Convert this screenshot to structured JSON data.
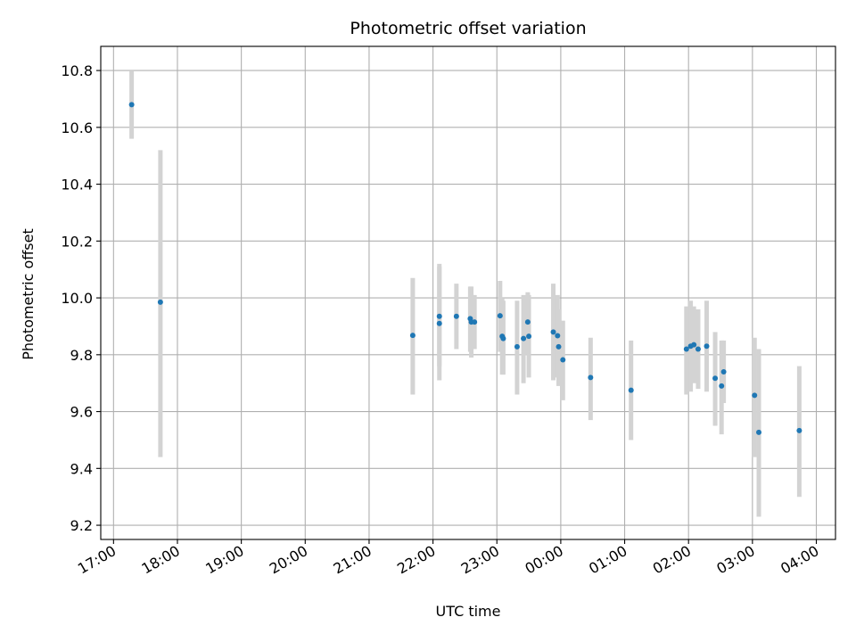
{
  "chart_data": {
    "type": "scatter",
    "title": "Photometric offset variation",
    "xlabel": "UTC time",
    "ylabel": "Photometric offset",
    "x_tick_labels": [
      "17:00",
      "18:00",
      "19:00",
      "20:00",
      "21:00",
      "22:00",
      "23:00",
      "00:00",
      "01:00",
      "02:00",
      "03:00",
      "04:00"
    ],
    "y_ticks": [
      9.2,
      9.4,
      9.6,
      9.8,
      10.0,
      10.2,
      10.4,
      10.6,
      10.8
    ],
    "y_tick_labels": [
      "9.2",
      "9.4",
      "9.6",
      "9.8",
      "10.0",
      "10.2",
      "10.4",
      "10.6",
      "10.8"
    ],
    "xlim": [
      "16:48",
      "04:18"
    ],
    "ylim": [
      9.15,
      10.885
    ],
    "grid": true,
    "colors": {
      "points": "#1f77b4",
      "errorbars": "#d3d3d3",
      "grid": "#b0b0b0"
    },
    "series": [
      {
        "points": [
          {
            "x": "17:17",
            "y": 10.68,
            "lo": 10.56,
            "hi": 10.8
          },
          {
            "x": "17:44",
            "y": 9.985,
            "lo": 9.44,
            "hi": 10.52
          },
          {
            "x": "21:41",
            "y": 9.868,
            "lo": 9.66,
            "hi": 10.07
          },
          {
            "x": "22:06",
            "y": 9.935,
            "lo": 9.76,
            "hi": 10.12
          },
          {
            "x": "22:06",
            "y": 9.91,
            "lo": 9.71,
            "hi": 10.11
          },
          {
            "x": "22:22",
            "y": 9.935,
            "lo": 9.82,
            "hi": 10.05
          },
          {
            "x": "22:35",
            "y": 9.927,
            "lo": 9.81,
            "hi": 10.04
          },
          {
            "x": "22:36",
            "y": 9.915,
            "lo": 9.79,
            "hi": 10.04
          },
          {
            "x": "22:39",
            "y": 9.915,
            "lo": 9.82,
            "hi": 10.01
          },
          {
            "x": "23:03",
            "y": 9.937,
            "lo": 9.81,
            "hi": 10.06
          },
          {
            "x": "23:05",
            "y": 9.865,
            "lo": 9.73,
            "hi": 10.0
          },
          {
            "x": "23:06",
            "y": 9.857,
            "lo": 9.73,
            "hi": 9.99
          },
          {
            "x": "23:19",
            "y": 9.828,
            "lo": 9.66,
            "hi": 9.99
          },
          {
            "x": "23:25",
            "y": 9.857,
            "lo": 9.7,
            "hi": 10.01
          },
          {
            "x": "23:29",
            "y": 9.915,
            "lo": 9.8,
            "hi": 10.02
          },
          {
            "x": "23:30",
            "y": 9.865,
            "lo": 9.72,
            "hi": 10.01
          },
          {
            "x": "23:53",
            "y": 9.88,
            "lo": 9.71,
            "hi": 10.05
          },
          {
            "x": "23:57",
            "y": 9.867,
            "lo": 9.72,
            "hi": 10.01
          },
          {
            "x": "23:58",
            "y": 9.828,
            "lo": 9.69,
            "hi": 9.96
          },
          {
            "x": "00:02",
            "y": 9.782,
            "lo": 9.64,
            "hi": 9.92
          },
          {
            "x": "00:28",
            "y": 9.72,
            "lo": 9.57,
            "hi": 9.86
          },
          {
            "x": "01:06",
            "y": 9.675,
            "lo": 9.5,
            "hi": 9.85
          },
          {
            "x": "01:58",
            "y": 9.82,
            "lo": 9.66,
            "hi": 9.97
          },
          {
            "x": "02:02",
            "y": 9.83,
            "lo": 9.67,
            "hi": 9.99
          },
          {
            "x": "02:05",
            "y": 9.835,
            "lo": 9.7,
            "hi": 9.97
          },
          {
            "x": "02:09",
            "y": 9.82,
            "lo": 9.68,
            "hi": 9.96
          },
          {
            "x": "02:17",
            "y": 9.83,
            "lo": 9.67,
            "hi": 9.99
          },
          {
            "x": "02:25",
            "y": 9.717,
            "lo": 9.55,
            "hi": 9.88
          },
          {
            "x": "02:31",
            "y": 9.69,
            "lo": 9.52,
            "hi": 9.85
          },
          {
            "x": "02:33",
            "y": 9.74,
            "lo": 9.63,
            "hi": 9.85
          },
          {
            "x": "03:02",
            "y": 9.657,
            "lo": 9.44,
            "hi": 9.86
          },
          {
            "x": "03:06",
            "y": 9.527,
            "lo": 9.23,
            "hi": 9.82
          },
          {
            "x": "03:44",
            "y": 9.533,
            "lo": 9.3,
            "hi": 9.76
          }
        ]
      }
    ]
  }
}
